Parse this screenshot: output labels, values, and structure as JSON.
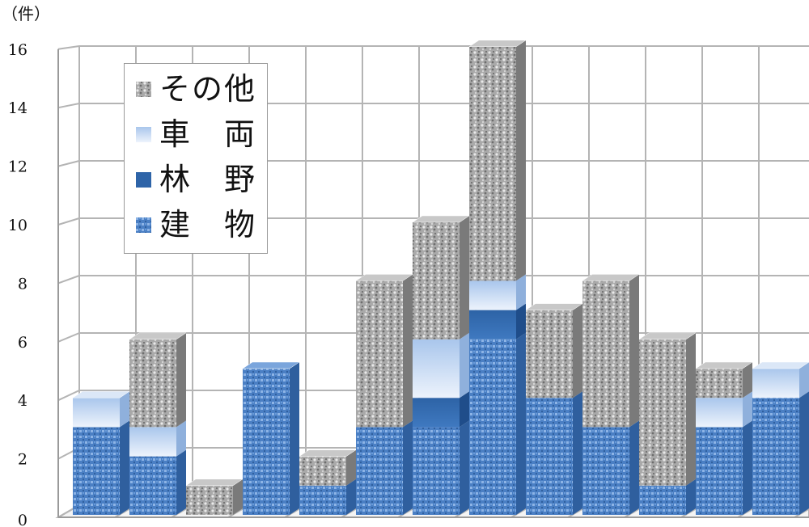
{
  "chart_data": {
    "type": "bar",
    "stacked": true,
    "unit_label": "（件）",
    "ylim": [
      0,
      16
    ],
    "yticks": [
      "0",
      "2",
      "4",
      "6",
      "8",
      "10",
      "12",
      "14",
      "16"
    ],
    "grid": true,
    "legend_position": "top-left",
    "categories": [
      "",
      "",
      "",
      "",
      "",
      "",
      "",
      "",
      "",
      "",
      "",
      "",
      ""
    ],
    "series": [
      {
        "name": "建　物",
        "color": "#4a7fc4",
        "values": [
          3,
          2,
          0,
          5,
          1,
          3,
          3,
          6,
          4,
          3,
          1,
          3,
          4
        ]
      },
      {
        "name": "林　野",
        "color": "#2e64a8",
        "values": [
          0,
          0,
          0,
          0,
          0,
          0,
          1,
          1,
          0,
          0,
          0,
          0,
          0
        ]
      },
      {
        "name": "車　両",
        "color": "#c9dbf3",
        "values": [
          1,
          1,
          0,
          0,
          0,
          0,
          2,
          1,
          0,
          0,
          0,
          1,
          1
        ]
      },
      {
        "name": "その他",
        "color": "#9e9e9e",
        "values": [
          0,
          3,
          1,
          0,
          1,
          5,
          4,
          8,
          3,
          5,
          5,
          1,
          0
        ]
      }
    ]
  }
}
